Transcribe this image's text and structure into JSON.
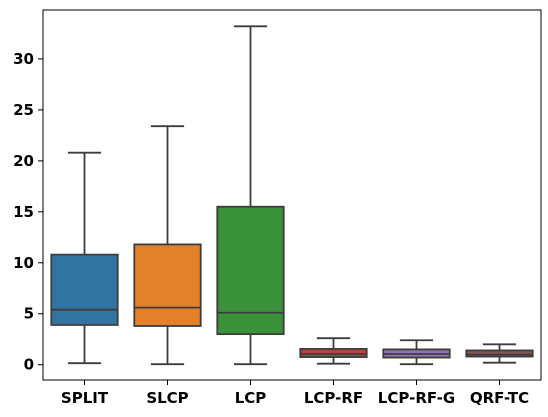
{
  "chart_data": {
    "type": "box",
    "categories": [
      "SPLIT",
      "SLCP",
      "LCP",
      "LCP-RF",
      "LCP-RF-G",
      "QRF-TC"
    ],
    "series": [
      {
        "category": "SPLIT",
        "color": "#3274a1",
        "whisker_low": 0.15,
        "q1": 3.9,
        "median": 5.4,
        "q3": 10.8,
        "whisker_high": 20.8
      },
      {
        "category": "SLCP",
        "color": "#e1812c",
        "whisker_low": 0.05,
        "q1": 3.8,
        "median": 5.6,
        "q3": 11.8,
        "whisker_high": 23.4
      },
      {
        "category": "LCP",
        "color": "#3a923a",
        "whisker_low": 0.05,
        "q1": 3.0,
        "median": 5.1,
        "q3": 15.5,
        "whisker_high": 33.2
      },
      {
        "category": "LCP-RF",
        "color": "#c03d3e",
        "whisker_low": 0.1,
        "q1": 0.75,
        "median": 1.05,
        "q3": 1.55,
        "whisker_high": 2.6
      },
      {
        "category": "LCP-RF-G",
        "color": "#9372b2",
        "whisker_low": 0.05,
        "q1": 0.7,
        "median": 1.05,
        "q3": 1.5,
        "whisker_high": 2.4
      },
      {
        "category": "QRF-TC",
        "color": "#845b53",
        "whisker_low": 0.2,
        "q1": 0.8,
        "median": 1.0,
        "q3": 1.4,
        "whisker_high": 2.0
      }
    ],
    "y_ticks": [
      0,
      5,
      10,
      15,
      20,
      25,
      30
    ],
    "ylim": [
      -1.5,
      34.8
    ],
    "xlabel": "",
    "ylabel": "",
    "title": "",
    "grid": false
  }
}
